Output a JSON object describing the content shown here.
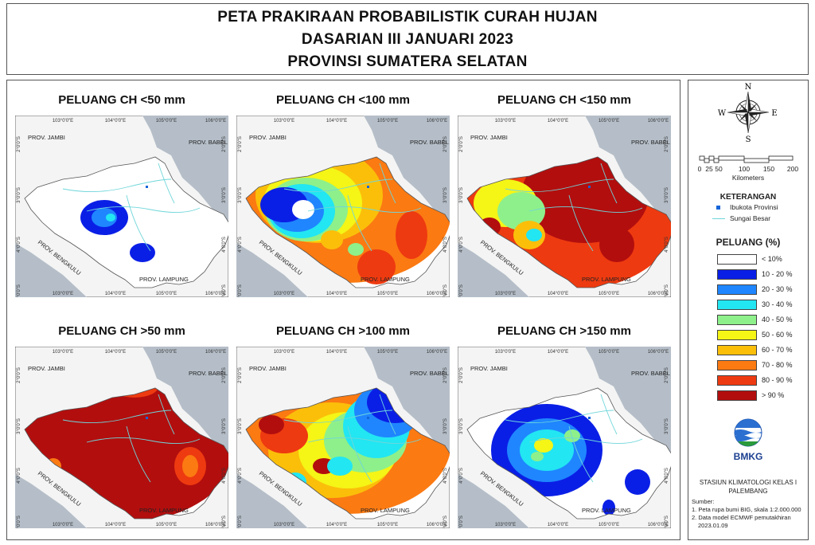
{
  "title": {
    "line1": "PETA PRAKIRAAN PROBABILISTIK CURAH HUJAN",
    "line2": "DASARIAN III JANUARI 2023",
    "line3": "PROVINSI SUMATERA SELATAN"
  },
  "panels": [
    {
      "title": "PELUANG CH <50 mm",
      "level": "low"
    },
    {
      "title": "PELUANG CH <100 mm",
      "level": "mid"
    },
    {
      "title": "PELUANG CH <150 mm",
      "level": "high"
    },
    {
      "title": "PELUANG CH >50 mm",
      "level": "vhigh"
    },
    {
      "title": "PELUANG CH >100 mm",
      "level": "mid2"
    },
    {
      "title": "PELUANG CH >150 mm",
      "level": "low2"
    }
  ],
  "map_labels": {
    "jambi": "PROV. JAMBI",
    "babel": "PROV. BABEL",
    "bengkulu": "PROV. BENGKULU",
    "lampung": "PROV. LAMPUNG"
  },
  "ticks": {
    "x": [
      "103°0'0\"E",
      "104°0'0\"E",
      "105°0'0\"E",
      "106°0'0\"E"
    ],
    "y": [
      "2°0'0\"S",
      "3°0'0\"S",
      "4°0'0\"S",
      "5°0'0\"S"
    ]
  },
  "compass": {
    "n": "N",
    "s": "S",
    "e": "E",
    "w": "W"
  },
  "scalebar": {
    "ticks": [
      "0",
      "25",
      "50",
      "100",
      "150",
      "200"
    ],
    "unit": "Kilometers"
  },
  "keterangan": {
    "heading": "KETERANGAN",
    "capital": "Ibukota Provinsi",
    "river": "Sungai Besar"
  },
  "peluang": {
    "heading": "PELUANG (%)",
    "classes": [
      {
        "label": "< 10%",
        "color": "#ffffff"
      },
      {
        "label": "10 - 20 %",
        "color": "#0a1fe6"
      },
      {
        "label": "20 - 30 %",
        "color": "#1f86ff"
      },
      {
        "label": "30 - 40 %",
        "color": "#22e6f2"
      },
      {
        "label": "40 - 50 %",
        "color": "#8ef08a"
      },
      {
        "label": "50 - 60 %",
        "color": "#f5f516"
      },
      {
        "label": "60 - 70 %",
        "color": "#fbbf0a"
      },
      {
        "label": "70 - 80 %",
        "color": "#fb7a12"
      },
      {
        "label": "80 - 90 %",
        "color": "#ee3a10"
      },
      {
        "label": "> 90 %",
        "color": "#b20e0e"
      }
    ]
  },
  "agency": {
    "logo_text": "BMKG",
    "station_line1": "STASIUN KLIMATOLOGI KELAS I",
    "station_line2": "PALEMBANG"
  },
  "sources": {
    "heading": "Sumber:",
    "line1": "1. Peta rupa bumi BIG, skala 1:2.000.000",
    "line2": "2. Data model ECMWF pemutakhiran",
    "line3": "2023.01.09"
  },
  "colors": {
    "sea": "#b5bec8",
    "outside": "#f4f4f4",
    "river": "#6fd6da"
  }
}
